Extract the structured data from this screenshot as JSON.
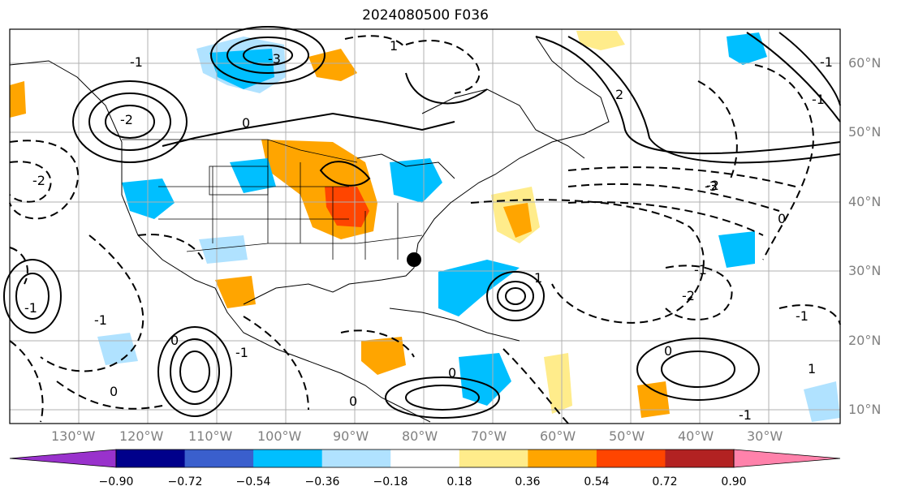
{
  "title": "2024080500 F036",
  "map": {
    "projection": "PlateCarree",
    "lon_range": [
      -142,
      -21
    ],
    "lat_range": [
      8,
      65
    ],
    "lon_labels": [
      "130°W",
      "120°W",
      "110°W",
      "100°W",
      "90°W",
      "80°W",
      "70°W",
      "60°W",
      "50°W",
      "40°W",
      "30°W"
    ],
    "lat_labels": [
      "60°N",
      "50°N",
      "40°N",
      "30°N",
      "20°N",
      "10°N"
    ],
    "contour_labels": [
      "-2",
      "-3",
      "-2",
      "-1",
      "0",
      "1",
      "2",
      "-1",
      "-2",
      "0",
      "-2",
      "-1",
      "0",
      "-1",
      "-1",
      "0",
      "-3",
      "0",
      "1",
      "-1",
      "-1",
      "-1",
      "0",
      "0",
      "1",
      "-1"
    ],
    "marker": "black-dot"
  },
  "colorbar": {
    "colors": [
      "#9932CC",
      "#00008B",
      "#3A5FCD",
      "#00BFFF",
      "#B0E2FF",
      "#FFFFFF",
      "#FFEC8B",
      "#FFA500",
      "#FF4500",
      "#B22222",
      "#FF82AB"
    ],
    "tick_labels": [
      "−0.90",
      "−0.72",
      "−0.54",
      "−0.36",
      "−0.18",
      "0.18",
      "0.36",
      "0.54",
      "0.72",
      "0.90"
    ]
  }
}
